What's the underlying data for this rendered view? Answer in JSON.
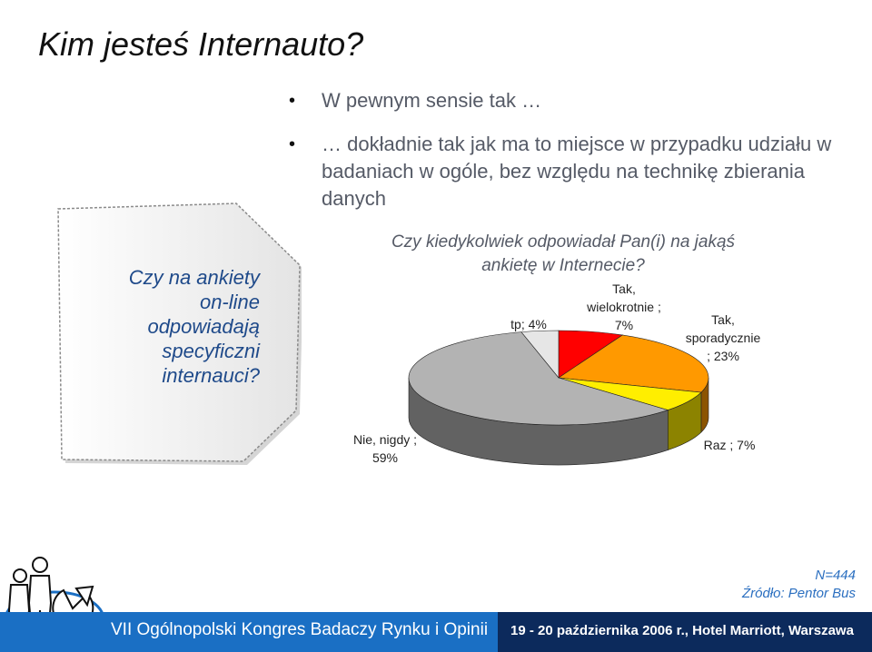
{
  "slide": {
    "title": "Kim jesteś Internauto?",
    "bullets": [
      "W pewnym sensie tak …",
      "… dokładnie tak jak ma to miejsce w przypadku udziału w badaniach w ogóle, bez względu na technikę zbierania danych"
    ],
    "callout_lines": [
      "Czy na ankiety",
      "on-line",
      "odpowiadają",
      "specyficzni",
      "internauci?"
    ]
  },
  "chart_data": {
    "type": "pie",
    "title": "Czy kiedykolwiek odpowiadał Pan(i) na jakąś ankietę w Internecie?",
    "slices": [
      {
        "label": "Tak, wielokrotnie",
        "value": 7,
        "color": "#ff0000"
      },
      {
        "label": "Tak, sporadycznie",
        "value": 23,
        "color": "#ff9900"
      },
      {
        "label": "Raz",
        "value": 7,
        "color": "#ffee00"
      },
      {
        "label": "Nie, nigdy",
        "value": 59,
        "color": "#b3b3b3"
      },
      {
        "label": "tp",
        "value": 4,
        "color": "#e6e6e6"
      }
    ],
    "data_labels": {
      "wielokrotnie_1": "Tak,",
      "wielokrotnie_2": "wielokrotnie ;",
      "wielokrotnie_3": "7%",
      "sporadycznie_1": "Tak,",
      "sporadycznie_2": "sporadycznie",
      "sporadycznie_3": "; 23%",
      "raz": "Raz ; 7%",
      "nigdy_1": "Nie, nigdy ;",
      "nigdy_2": "59%",
      "tp": "tp; 4%"
    }
  },
  "source": {
    "n": "N=444",
    "text": "Źródło: Pentor Bus"
  },
  "footer": {
    "left": "VII Ogólnopolski Kongres Badaczy Rynku i Opinii",
    "right": "19 - 20 października 2006 r., Hotel Marriott, Warszawa"
  },
  "colors": {
    "footer_left_bg": "#1a6fc4",
    "footer_right_bg": "#0c2a5c",
    "callout_text": "#1f4a8a",
    "source_text": "#2b6fc0"
  }
}
